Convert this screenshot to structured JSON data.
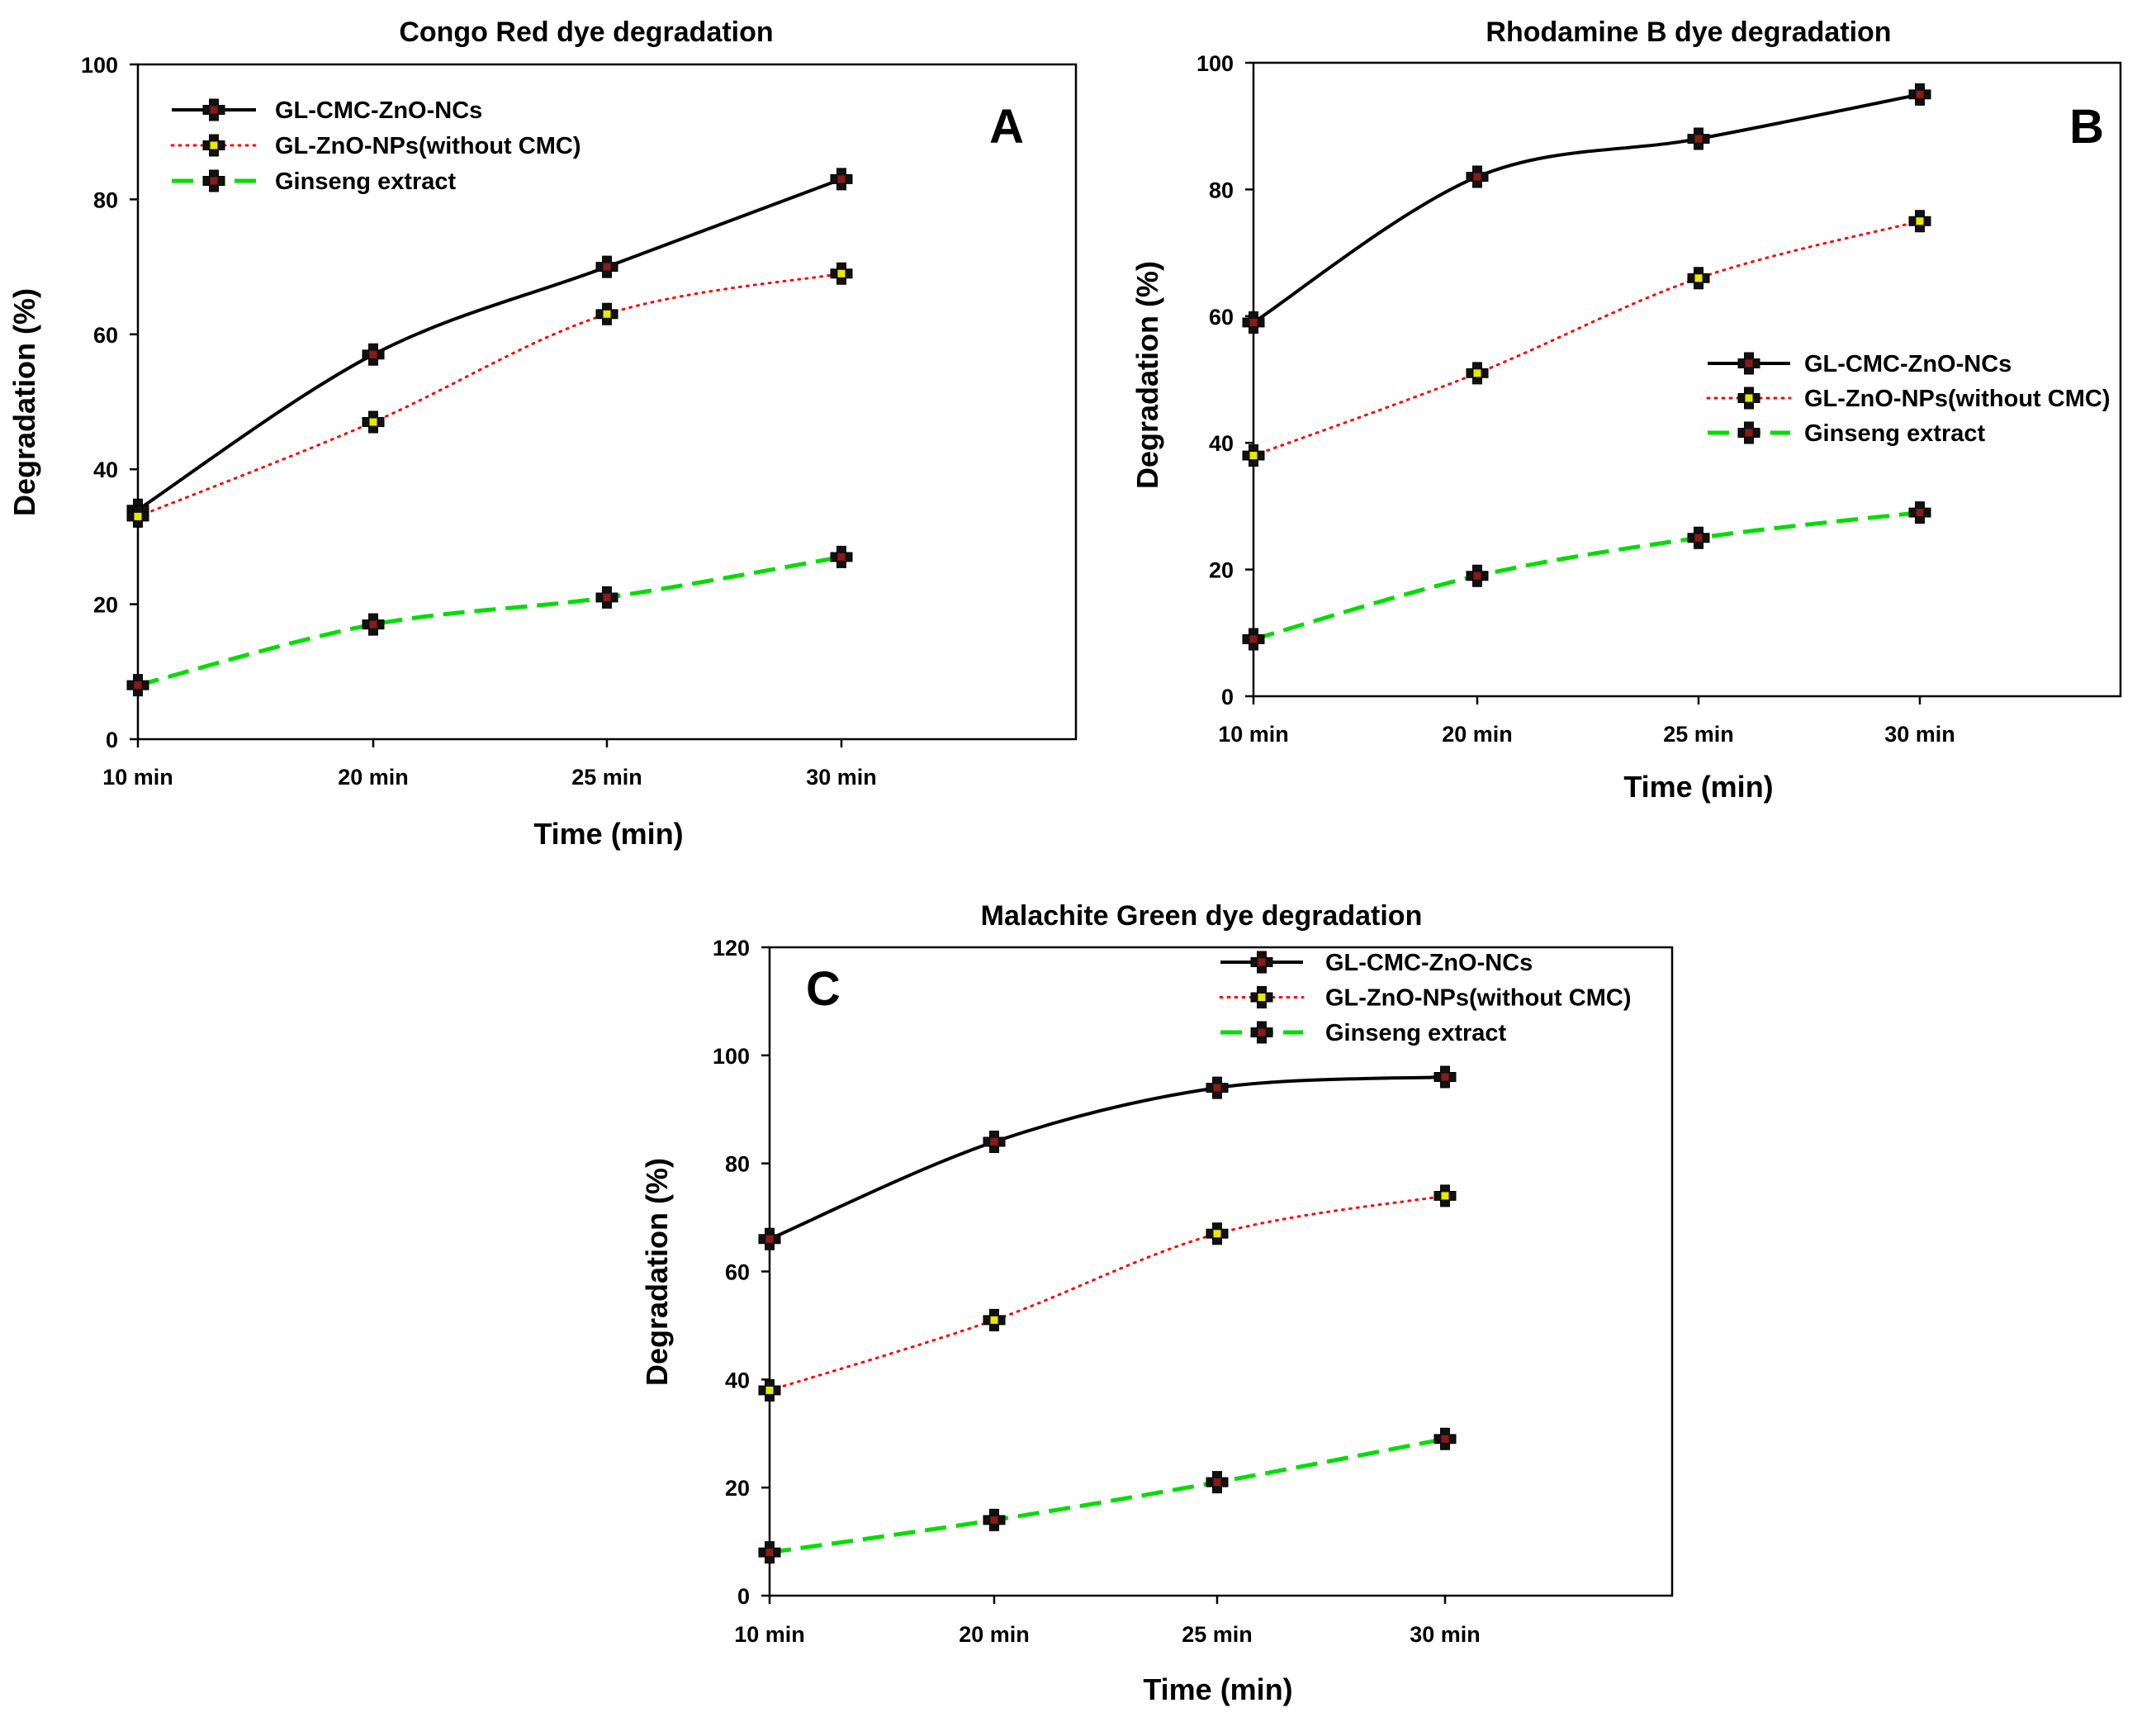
{
  "chart_data": [
    {
      "type": "line",
      "panel_label": "A",
      "title": "Congo Red dye degradation",
      "xlabel": "Time (min)",
      "ylabel": "Degradation (%)",
      "categories": [
        "10 min",
        "20 min",
        "25 min",
        "30 min"
      ],
      "ylim": [
        0,
        100
      ],
      "yticks": [
        "0",
        "20",
        "40",
        "60",
        "80",
        "100"
      ],
      "legend_position": "top-left",
      "series": [
        {
          "name": "GL-CMC-ZnO-NCs",
          "values": [
            34,
            57,
            70,
            83
          ],
          "color": "#000000",
          "style": "solid",
          "marker_fill": "#8b1a1a"
        },
        {
          "name": "GL-ZnO-NPs(without CMC)",
          "values": [
            33,
            47,
            63,
            69
          ],
          "color": "#ff0000",
          "style": "dotted",
          "marker_fill": "#e8e800"
        },
        {
          "name": "Ginseng extract",
          "values": [
            8,
            17,
            21,
            27
          ],
          "color": "#00dd00",
          "style": "dashed",
          "marker_fill": "#8b1a1a"
        }
      ]
    },
    {
      "type": "line",
      "panel_label": "B",
      "title": "Rhodamine B  dye degradation",
      "xlabel": "Time (min)",
      "ylabel": "Degradation (%)",
      "categories": [
        "10 min",
        "20 min",
        "25 min",
        "30 min"
      ],
      "ylim": [
        0,
        100
      ],
      "yticks": [
        "0",
        "20",
        "40",
        "60",
        "80",
        "100"
      ],
      "legend_position": "middle-right",
      "series": [
        {
          "name": "GL-CMC-ZnO-NCs",
          "values": [
            59,
            82,
            88,
            95
          ],
          "color": "#000000",
          "style": "solid",
          "marker_fill": "#8b1a1a"
        },
        {
          "name": "GL-ZnO-NPs(without CMC)",
          "values": [
            38,
            51,
            66,
            75
          ],
          "color": "#ff0000",
          "style": "dotted",
          "marker_fill": "#e8e800"
        },
        {
          "name": "Ginseng extract",
          "values": [
            9,
            19,
            25,
            29
          ],
          "color": "#00dd00",
          "style": "dashed",
          "marker_fill": "#8b1a1a"
        }
      ]
    },
    {
      "type": "line",
      "panel_label": "C",
      "title": "Malachite Green dye degradation",
      "xlabel": "Time (min)",
      "ylabel": "Degradation (%)",
      "categories": [
        "10 min",
        "20 min",
        "25 min",
        "30 min"
      ],
      "ylim": [
        0,
        120
      ],
      "yticks": [
        "0",
        "20",
        "40",
        "60",
        "80",
        "100",
        "120"
      ],
      "legend_position": "top-right",
      "series": [
        {
          "name": "GL-CMC-ZnO-NCs",
          "values": [
            66,
            84,
            94,
            96
          ],
          "color": "#000000",
          "style": "solid",
          "marker_fill": "#8b1a1a"
        },
        {
          "name": "GL-ZnO-NPs(without CMC)",
          "values": [
            38,
            51,
            67,
            74
          ],
          "color": "#ff0000",
          "style": "dotted",
          "marker_fill": "#e8e800"
        },
        {
          "name": "Ginseng extract",
          "values": [
            8,
            14,
            21,
            29
          ],
          "color": "#00dd00",
          "style": "dashed",
          "marker_fill": "#8b1a1a"
        }
      ]
    }
  ]
}
